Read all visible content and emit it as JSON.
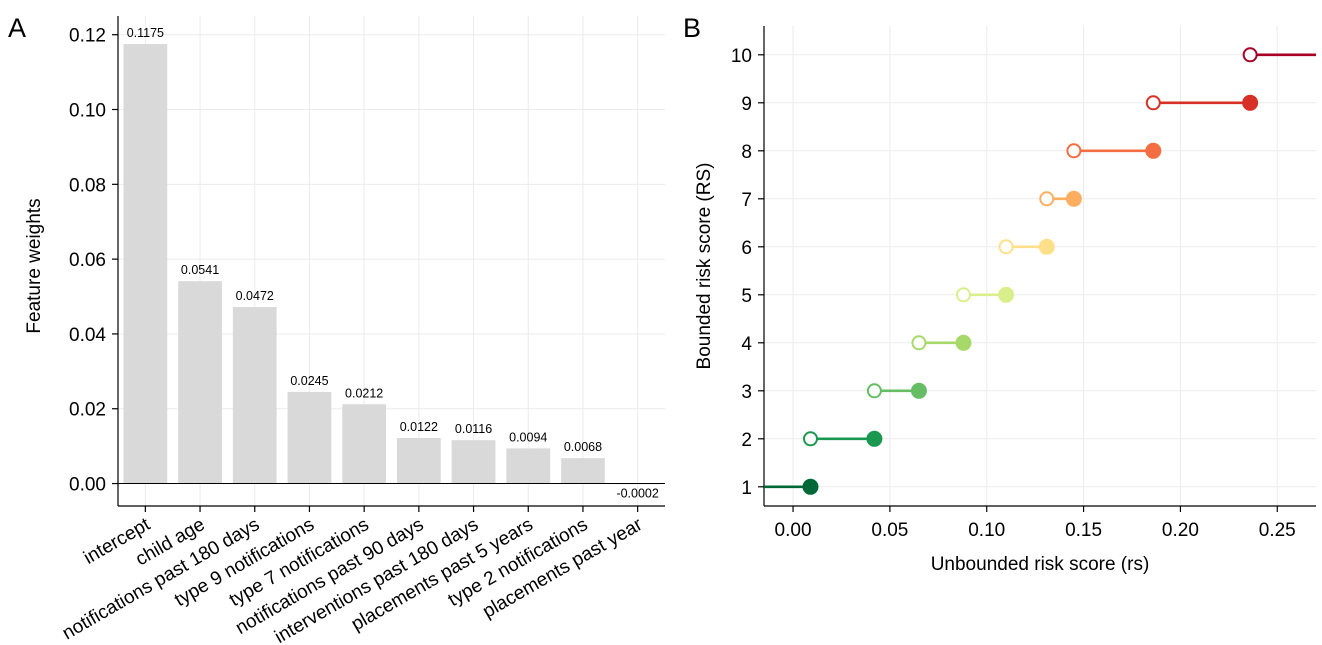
{
  "chart_data": [
    {
      "type": "bar",
      "panel_label": "A",
      "ylabel": "Feature weights",
      "xlabel": "",
      "ylim": [
        -0.006,
        0.125
      ],
      "yticks": [
        "0.00",
        "0.02",
        "0.04",
        "0.06",
        "0.08",
        "0.10",
        "0.12"
      ],
      "categories": [
        "intercept",
        "child age",
        "notifications past 180 days",
        "type 9 notifications",
        "type 7 notifications",
        "notifications past 90 days",
        "interventions past 180 days",
        "placements past 5 years",
        "type 2 notifications",
        "placements past year"
      ],
      "values": [
        0.1175,
        0.0541,
        0.0472,
        0.0245,
        0.0212,
        0.0122,
        0.0116,
        0.0094,
        0.0068,
        -0.0002
      ],
      "value_labels": [
        "0.1175",
        "0.0541",
        "0.0472",
        "0.0245",
        "0.0212",
        "0.0122",
        "0.0116",
        "0.0094",
        "0.0068",
        "-0.0002"
      ],
      "bar_color": "#d9d9d9",
      "grid": true
    },
    {
      "type": "line",
      "panel_label": "B",
      "xlabel": "Unbounded risk score (rs)",
      "ylabel": "Bounded risk score (RS)",
      "xlim": [
        -0.015,
        0.27
      ],
      "ylim": [
        0.6,
        10.6
      ],
      "xticks": [
        "0.00",
        "0.05",
        "0.10",
        "0.15",
        "0.20",
        "0.25"
      ],
      "yticks": [
        "1",
        "2",
        "3",
        "4",
        "5",
        "6",
        "7",
        "8",
        "9",
        "10"
      ],
      "grid": true,
      "series": [
        {
          "y": 1,
          "x_start": null,
          "x_end": 0.009,
          "color": "#006837"
        },
        {
          "y": 2,
          "x_start": 0.009,
          "x_end": 0.042,
          "color": "#1a9850"
        },
        {
          "y": 3,
          "x_start": 0.042,
          "x_end": 0.065,
          "color": "#66bd63"
        },
        {
          "y": 4,
          "x_start": 0.065,
          "x_end": 0.088,
          "color": "#a6d96a"
        },
        {
          "y": 5,
          "x_start": 0.088,
          "x_end": 0.11,
          "color": "#d9ef8b"
        },
        {
          "y": 6,
          "x_start": 0.11,
          "x_end": 0.131,
          "color": "#fee08b"
        },
        {
          "y": 7,
          "x_start": 0.131,
          "x_end": 0.145,
          "color": "#fdae61"
        },
        {
          "y": 8,
          "x_start": 0.145,
          "x_end": 0.186,
          "color": "#f46d43"
        },
        {
          "y": 9,
          "x_start": 0.186,
          "x_end": 0.236,
          "color": "#d73027"
        },
        {
          "y": 10,
          "x_start": 0.236,
          "x_end": null,
          "color": "#a50026"
        }
      ]
    }
  ]
}
